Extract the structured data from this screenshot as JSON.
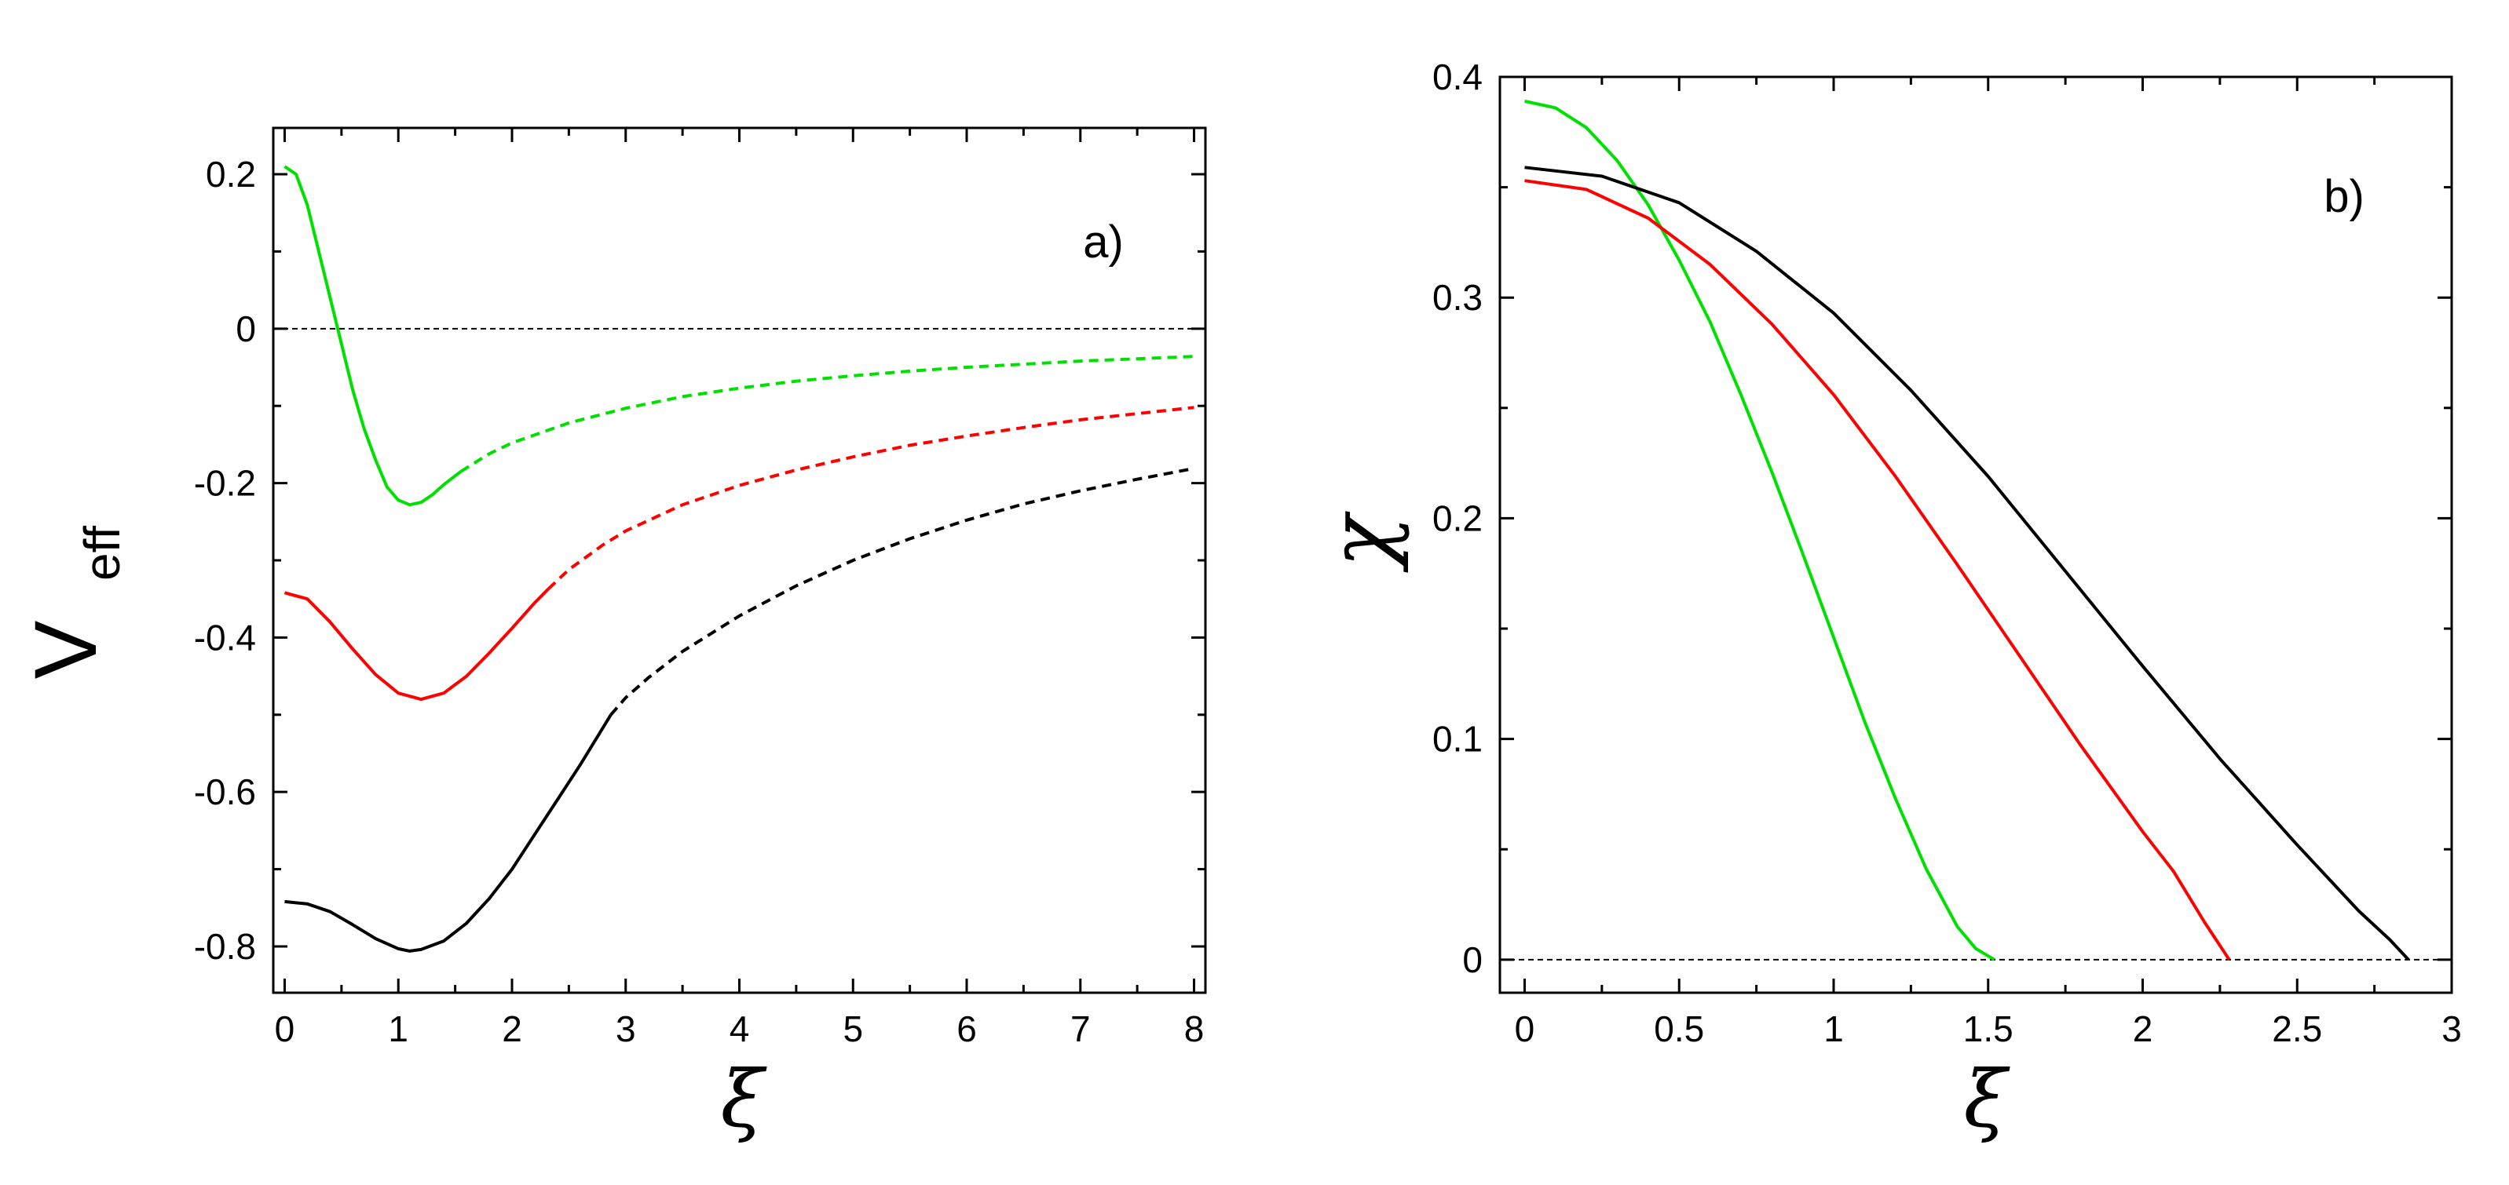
{
  "colors": {
    "green": "#00e000",
    "red": "#ff0000",
    "black": "#000000",
    "axis": "#000000",
    "background": "#ffffff"
  },
  "chart_data": [
    {
      "id": "a",
      "type": "line",
      "panel_label": "a)",
      "xlabel": "ξ",
      "ylabel_main": "V",
      "ylabel_sub": "eff",
      "xlim": [
        -0.1,
        8.1
      ],
      "ylim": [
        -0.86,
        0.26
      ],
      "xticks": [
        0,
        1,
        2,
        3,
        4,
        5,
        6,
        7,
        8
      ],
      "xtick_labels": [
        "0",
        "1",
        "2",
        "3",
        "4",
        "5",
        "6",
        "7",
        "8"
      ],
      "yticks": [
        0.2,
        0,
        -0.2,
        -0.4,
        -0.6,
        -0.8
      ],
      "ytick_labels": [
        "0.2",
        "0",
        "-0.2",
        "-0.4",
        "-0.6",
        "-0.8"
      ],
      "reference_line": {
        "y": 0,
        "style": "dashed"
      },
      "series": [
        {
          "name": "green",
          "color": "green",
          "solid": [
            [
              0.0,
              0.21
            ],
            [
              0.1,
              0.2
            ],
            [
              0.2,
              0.16
            ],
            [
              0.3,
              0.1
            ],
            [
              0.4,
              0.04
            ],
            [
              0.5,
              -0.02
            ],
            [
              0.6,
              -0.08
            ],
            [
              0.7,
              -0.13
            ],
            [
              0.8,
              -0.17
            ],
            [
              0.9,
              -0.205
            ],
            [
              1.0,
              -0.222
            ],
            [
              1.1,
              -0.228
            ],
            [
              1.2,
              -0.225
            ],
            [
              1.3,
              -0.215
            ],
            [
              1.4,
              -0.202
            ],
            [
              1.55,
              -0.185
            ]
          ],
          "dashed": [
            [
              1.55,
              -0.185
            ],
            [
              1.8,
              -0.162
            ],
            [
              2.0,
              -0.148
            ],
            [
              2.5,
              -0.122
            ],
            [
              3.0,
              -0.103
            ],
            [
              3.5,
              -0.088
            ],
            [
              4.0,
              -0.077
            ],
            [
              4.5,
              -0.068
            ],
            [
              5.0,
              -0.061
            ],
            [
              5.5,
              -0.055
            ],
            [
              6.0,
              -0.05
            ],
            [
              6.5,
              -0.046
            ],
            [
              7.0,
              -0.042
            ],
            [
              7.5,
              -0.039
            ],
            [
              8.0,
              -0.036
            ]
          ]
        },
        {
          "name": "red",
          "color": "red",
          "solid": [
            [
              0.0,
              -0.342
            ],
            [
              0.2,
              -0.35
            ],
            [
              0.4,
              -0.38
            ],
            [
              0.6,
              -0.415
            ],
            [
              0.8,
              -0.448
            ],
            [
              1.0,
              -0.472
            ],
            [
              1.2,
              -0.48
            ],
            [
              1.4,
              -0.472
            ],
            [
              1.6,
              -0.45
            ],
            [
              1.8,
              -0.42
            ],
            [
              2.0,
              -0.388
            ],
            [
              2.2,
              -0.355
            ],
            [
              2.32,
              -0.337
            ]
          ],
          "dashed": [
            [
              2.32,
              -0.337
            ],
            [
              2.5,
              -0.312
            ],
            [
              2.8,
              -0.28
            ],
            [
              3.0,
              -0.262
            ],
            [
              3.5,
              -0.228
            ],
            [
              4.0,
              -0.203
            ],
            [
              4.5,
              -0.183
            ],
            [
              5.0,
              -0.166
            ],
            [
              5.5,
              -0.151
            ],
            [
              6.0,
              -0.139
            ],
            [
              6.5,
              -0.128
            ],
            [
              7.0,
              -0.118
            ],
            [
              7.5,
              -0.11
            ],
            [
              8.0,
              -0.102
            ]
          ]
        },
        {
          "name": "black",
          "color": "black",
          "solid": [
            [
              0.0,
              -0.742
            ],
            [
              0.2,
              -0.745
            ],
            [
              0.4,
              -0.755
            ],
            [
              0.6,
              -0.772
            ],
            [
              0.8,
              -0.79
            ],
            [
              1.0,
              -0.803
            ],
            [
              1.1,
              -0.806
            ],
            [
              1.2,
              -0.804
            ],
            [
              1.4,
              -0.793
            ],
            [
              1.6,
              -0.77
            ],
            [
              1.8,
              -0.738
            ],
            [
              2.0,
              -0.7
            ],
            [
              2.2,
              -0.655
            ],
            [
              2.4,
              -0.61
            ],
            [
              2.6,
              -0.565
            ],
            [
              2.87,
              -0.5
            ]
          ],
          "dashed": [
            [
              2.87,
              -0.5
            ],
            [
              3.0,
              -0.478
            ],
            [
              3.2,
              -0.452
            ],
            [
              3.5,
              -0.418
            ],
            [
              4.0,
              -0.372
            ],
            [
              4.5,
              -0.333
            ],
            [
              5.0,
              -0.3
            ],
            [
              5.5,
              -0.272
            ],
            [
              6.0,
              -0.248
            ],
            [
              6.5,
              -0.227
            ],
            [
              7.0,
              -0.21
            ],
            [
              7.5,
              -0.195
            ],
            [
              8.0,
              -0.181
            ]
          ]
        }
      ]
    },
    {
      "id": "b",
      "type": "line",
      "panel_label": "b)",
      "xlabel": "ξ",
      "ylabel": "χ",
      "xlim": [
        -0.08,
        3.0
      ],
      "ylim": [
        -0.015,
        0.4
      ],
      "xticks": [
        0,
        0.5,
        1,
        1.5,
        2,
        2.5,
        3
      ],
      "xtick_labels": [
        "0",
        "0.5",
        "1",
        "1.5",
        "2",
        "2.5",
        "3"
      ],
      "yticks": [
        0,
        0.1,
        0.2,
        0.3,
        0.4
      ],
      "ytick_labels": [
        "0",
        "0.1",
        "0.2",
        "0.3",
        "0.4"
      ],
      "reference_line": {
        "y": 0,
        "style": "dashed"
      },
      "series": [
        {
          "name": "green",
          "color": "green",
          "solid": [
            [
              0.0,
              0.389
            ],
            [
              0.1,
              0.386
            ],
            [
              0.2,
              0.377
            ],
            [
              0.3,
              0.362
            ],
            [
              0.4,
              0.342
            ],
            [
              0.5,
              0.317
            ],
            [
              0.6,
              0.289
            ],
            [
              0.7,
              0.256
            ],
            [
              0.8,
              0.221
            ],
            [
              0.9,
              0.184
            ],
            [
              1.0,
              0.146
            ],
            [
              1.1,
              0.108
            ],
            [
              1.2,
              0.073
            ],
            [
              1.3,
              0.041
            ],
            [
              1.4,
              0.015
            ],
            [
              1.46,
              0.005
            ],
            [
              1.52,
              0.0
            ]
          ]
        },
        {
          "name": "red",
          "color": "red",
          "solid": [
            [
              0.0,
              0.353
            ],
            [
              0.2,
              0.349
            ],
            [
              0.4,
              0.336
            ],
            [
              0.6,
              0.315
            ],
            [
              0.8,
              0.288
            ],
            [
              1.0,
              0.256
            ],
            [
              1.2,
              0.219
            ],
            [
              1.4,
              0.179
            ],
            [
              1.6,
              0.138
            ],
            [
              1.8,
              0.097
            ],
            [
              2.0,
              0.058
            ],
            [
              2.1,
              0.04
            ],
            [
              2.2,
              0.017
            ],
            [
              2.28,
              0.0
            ]
          ]
        },
        {
          "name": "black",
          "color": "black",
          "solid": [
            [
              0.0,
              0.359
            ],
            [
              0.25,
              0.355
            ],
            [
              0.5,
              0.343
            ],
            [
              0.75,
              0.321
            ],
            [
              1.0,
              0.293
            ],
            [
              1.25,
              0.258
            ],
            [
              1.5,
              0.219
            ],
            [
              1.75,
              0.176
            ],
            [
              2.0,
              0.133
            ],
            [
              2.25,
              0.091
            ],
            [
              2.5,
              0.052
            ],
            [
              2.7,
              0.022
            ],
            [
              2.8,
              0.009
            ],
            [
              2.86,
              0.0
            ]
          ]
        }
      ]
    }
  ]
}
